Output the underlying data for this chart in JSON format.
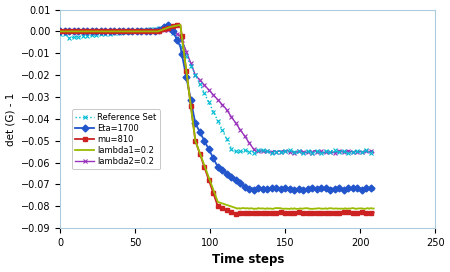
{
  "title": "",
  "xlabel": "Time steps",
  "ylabel": "det (G) - 1",
  "xlim": [
    0,
    250
  ],
  "ylim": [
    -0.09,
    0.01
  ],
  "yticks": [
    0.01,
    0.0,
    -0.01,
    -0.02,
    -0.03,
    -0.04,
    -0.05,
    -0.06,
    -0.07,
    -0.08,
    -0.09
  ],
  "xticks": [
    0,
    50,
    100,
    150,
    200,
    250
  ],
  "series": {
    "reference": {
      "label": "Reference Set",
      "color": "#00bcd4",
      "marker": "x",
      "linestyle": ":",
      "linewidth": 1.0,
      "markersize": 3.5,
      "markevery": 3
    },
    "eta": {
      "label": "Eta=1700",
      "color": "#2255cc",
      "marker": "D",
      "linestyle": "-",
      "linewidth": 1.3,
      "markersize": 3.5,
      "markevery": 3
    },
    "mu": {
      "label": "mu=810",
      "color": "#cc2222",
      "marker": "s",
      "linestyle": "-",
      "linewidth": 1.3,
      "markersize": 3.5,
      "markevery": 3
    },
    "lambda1": {
      "label": "lambda1=0.2",
      "color": "#99bb00",
      "marker": "",
      "linestyle": "-",
      "linewidth": 1.3,
      "markersize": 0,
      "markevery": 1
    },
    "lambda2": {
      "label": "lambda2=0.2",
      "color": "#9933bb",
      "marker": "x",
      "linestyle": "-",
      "linewidth": 1.0,
      "markersize": 3.5,
      "markevery": 3
    }
  }
}
